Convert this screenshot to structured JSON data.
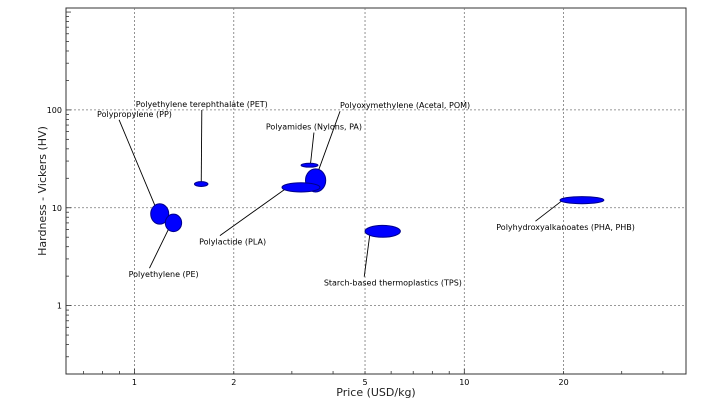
{
  "chart_data": {
    "type": "scatter",
    "xlabel": "Price (USD/kg)",
    "ylabel": "Hardness - Vickers (HV)",
    "xscale": "log",
    "yscale": "log",
    "xlim": [
      0.62,
      47
    ],
    "ylim": [
      0.2,
      1100
    ],
    "grid": "dotted",
    "legend": "none",
    "marker_color": "#0000ff",
    "marker_edge": "#00008b",
    "xticks": [
      {
        "value": 1,
        "label": "1"
      },
      {
        "value": 2,
        "label": "2"
      },
      {
        "value": 5,
        "label": "5"
      },
      {
        "value": 10,
        "label": "10"
      },
      {
        "value": 20,
        "label": "20"
      }
    ],
    "yticks": [
      {
        "value": 1,
        "label": "1"
      },
      {
        "value": 10,
        "label": "10"
      },
      {
        "value": 100,
        "label": "100"
      }
    ],
    "materials": [
      {
        "name": "Polyamides (Nylons, PA)",
        "x": [
          3.2,
          3.6
        ],
        "y": [
          26,
          28.5
        ],
        "label_at": [
          3.5,
          63
        ],
        "anchor": "middle"
      },
      {
        "name": "Polyethylene terephthalate (PET)",
        "x": [
          1.52,
          1.67
        ],
        "y": [
          16.5,
          18.5
        ],
        "label_at": [
          1.6,
          107
        ],
        "anchor": "middle"
      },
      {
        "name": "Polyoxymethylene (Acetal, POM)",
        "x": [
          3.3,
          3.8
        ],
        "y": [
          14.5,
          25
        ],
        "label_at": [
          4.2,
          104
        ],
        "anchor": "start"
      },
      {
        "name": "Polypropylene (PP)",
        "x": [
          1.12,
          1.27
        ],
        "y": [
          6.8,
          11
        ],
        "label_at": [
          0.77,
          85
        ],
        "anchor": "start"
      },
      {
        "name": "Polyethylene (PE)",
        "x": [
          1.24,
          1.39
        ],
        "y": [
          5.7,
          8.6
        ],
        "label_at": [
          0.96,
          1.95
        ],
        "anchor": "start"
      },
      {
        "name": "Polylactide (PLA)",
        "x": [
          2.8,
          3.65
        ],
        "y": [
          14.5,
          18
        ],
        "label_at": [
          1.57,
          4.2
        ],
        "anchor": "start"
      },
      {
        "name": "Starch-based thermoplastics (TPS)",
        "x": [
          5.0,
          6.4
        ],
        "y": [
          5.0,
          6.6
        ],
        "label_at": [
          3.75,
          1.6
        ],
        "anchor": "start"
      },
      {
        "name": "Polyhydroxyalkanoates (PHA, PHB)",
        "x": [
          19.5,
          26.5
        ],
        "y": [
          11,
          13
        ],
        "label_at": [
          12.5,
          5.9
        ],
        "anchor": "start"
      }
    ]
  }
}
